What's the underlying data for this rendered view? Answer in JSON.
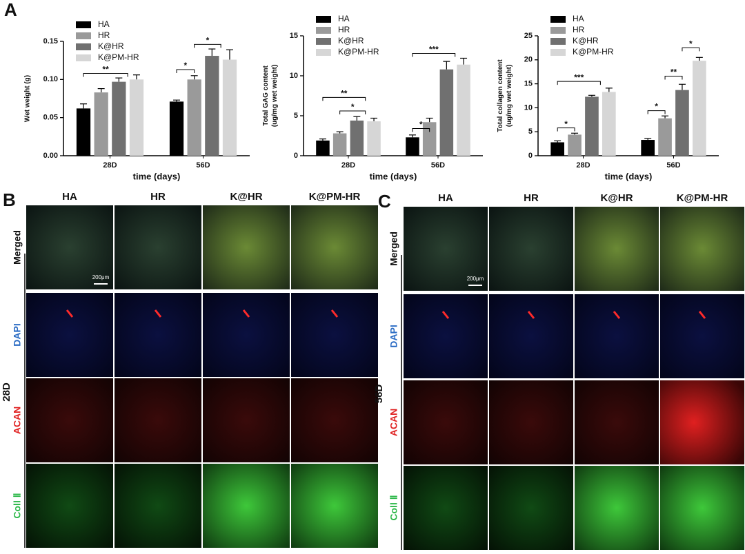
{
  "panel_labels": [
    "A",
    "B",
    "C"
  ],
  "chart_data": [
    {
      "type": "bar",
      "ylabel": [
        "Wet weight (g)"
      ],
      "xlabel": "time (days)",
      "categories": [
        "28D",
        "56D"
      ],
      "series": [
        {
          "name": "HA",
          "color": "#000000",
          "values": [
            0.062,
            0.071
          ],
          "errors": [
            0.006,
            0.002
          ]
        },
        {
          "name": "HR",
          "color": "#9a9a9a",
          "values": [
            0.083,
            0.1
          ],
          "errors": [
            0.005,
            0.005
          ]
        },
        {
          "name": "K@HR",
          "color": "#707070",
          "values": [
            0.097,
            0.131
          ],
          "errors": [
            0.005,
            0.009
          ]
        },
        {
          "name": "K@PM-HR",
          "color": "#d6d6d6",
          "values": [
            0.1,
            0.126
          ],
          "errors": [
            0.006,
            0.013
          ]
        }
      ],
      "ylim": [
        0,
        0.15
      ],
      "yticks": [
        {
          "value": 0,
          "label": "0.00"
        },
        {
          "value": 0.05,
          "label": "0.05"
        },
        {
          "value": 0.1,
          "label": "0.10"
        },
        {
          "value": 0.15,
          "label": "0.15"
        }
      ],
      "annotations": [
        "**",
        "*",
        "*"
      ]
    },
    {
      "type": "bar",
      "ylabel": [
        "Total GAG content",
        "(ug/mg wet weight)"
      ],
      "xlabel": "time (days)",
      "categories": [
        "28D",
        "56D"
      ],
      "series": [
        {
          "name": "HA",
          "color": "#000000",
          "values": [
            1.9,
            2.3
          ],
          "errors": [
            0.2,
            0.3
          ]
        },
        {
          "name": "HR",
          "color": "#9a9a9a",
          "values": [
            2.8,
            4.2
          ],
          "errors": [
            0.2,
            0.5
          ]
        },
        {
          "name": "K@HR",
          "color": "#707070",
          "values": [
            4.4,
            10.8
          ],
          "errors": [
            0.5,
            1.0
          ]
        },
        {
          "name": "K@PM-HR",
          "color": "#d6d6d6",
          "values": [
            4.3,
            11.4
          ],
          "errors": [
            0.4,
            0.8
          ]
        }
      ],
      "ylim": [
        0,
        15
      ],
      "yticks": [
        0,
        5,
        10,
        15
      ],
      "annotations": [
        "**",
        "*",
        "*",
        "***"
      ]
    },
    {
      "type": "bar",
      "ylabel": [
        "Total collagen content",
        "(ug/mg wet weight)"
      ],
      "xlabel": "time (days)",
      "categories": [
        "28D",
        "56D"
      ],
      "series": [
        {
          "name": "HA",
          "color": "#000000",
          "values": [
            2.8,
            3.3
          ],
          "errors": [
            0.3,
            0.3
          ]
        },
        {
          "name": "HR",
          "color": "#9a9a9a",
          "values": [
            4.4,
            7.8
          ],
          "errors": [
            0.3,
            0.5
          ]
        },
        {
          "name": "K@HR",
          "color": "#707070",
          "values": [
            12.3,
            13.7
          ],
          "errors": [
            0.3,
            1.2
          ]
        },
        {
          "name": "K@PM-HR",
          "color": "#d6d6d6",
          "values": [
            13.3,
            19.8
          ],
          "errors": [
            0.8,
            0.7
          ]
        }
      ],
      "ylim": [
        0,
        25
      ],
      "yticks": [
        0,
        5,
        10,
        15,
        20,
        25
      ],
      "annotations": [
        "*",
        "***",
        "*",
        "**",
        "*"
      ]
    }
  ],
  "image_panels": [
    {
      "columns": [
        "HA",
        "HR",
        "K@HR",
        "K@PM-HR"
      ],
      "rows": [
        "Merged",
        "DAPI",
        "ACAN",
        "Coll Ⅱ"
      ],
      "time": "28D",
      "scale_bar": "200μm"
    },
    {
      "columns": [
        "HA",
        "HR",
        "K@HR",
        "K@PM-HR"
      ],
      "rows": [
        "Merged",
        "DAPI",
        "ACAN",
        "Coll Ⅱ"
      ],
      "time": "56D",
      "scale_bar": "200μm"
    }
  ]
}
